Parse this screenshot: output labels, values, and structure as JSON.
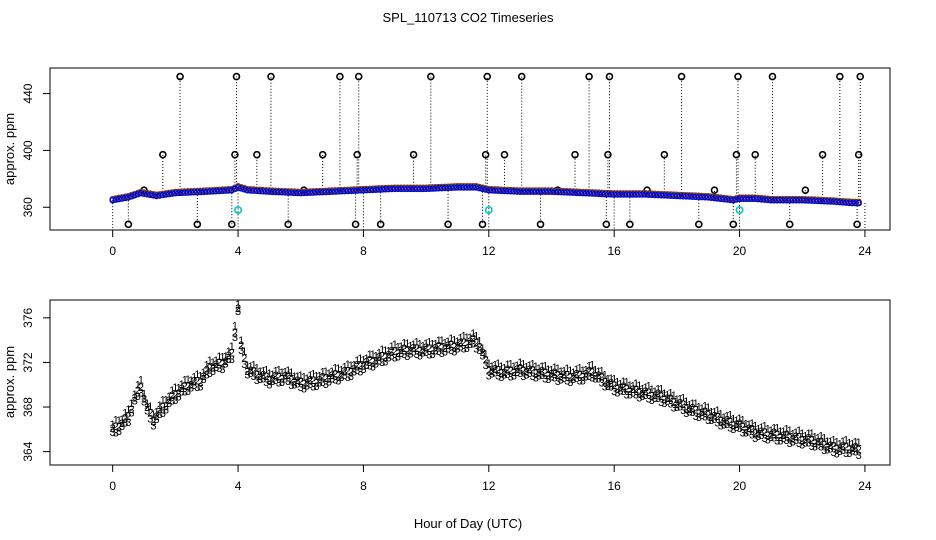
{
  "figure": {
    "title": "SPL_110713  CO2 Timeseries",
    "xlabel": "Hour of Day (UTC)"
  },
  "colors": {
    "series1": "#e00000",
    "series2": "#00b000",
    "series3": "#0000e0",
    "spike": "#000000",
    "cyan_marker": "#00c8c8"
  },
  "chart_data": [
    {
      "type": "scatter",
      "ylabel": "approx. ppm",
      "xlim": [
        -2,
        24.8
      ],
      "ylim": [
        344,
        458
      ],
      "xticks": [
        0,
        4,
        8,
        12,
        16,
        20,
        24
      ],
      "yticks": [
        360,
        400,
        440
      ],
      "grid": false,
      "baseline": {
        "x": [
          0,
          0.5,
          0.9,
          1.4,
          2,
          3,
          3.8,
          4,
          4.3,
          5,
          6,
          7,
          8,
          9,
          10,
          11,
          11.6,
          12,
          13,
          14,
          15,
          16,
          17,
          18,
          19,
          19.8,
          20,
          20.5,
          21,
          22,
          23,
          23.6,
          23.9
        ],
        "y": [
          365,
          367,
          370,
          368,
          370,
          371,
          372,
          374,
          372,
          371,
          370,
          371,
          372,
          373,
          373,
          374,
          374,
          372,
          371,
          371,
          370,
          369,
          369,
          368,
          367,
          365,
          366,
          366,
          365,
          365,
          364,
          363,
          363
        ]
      },
      "spikes": {
        "x": [
          0.5,
          1,
          1.6,
          2.15,
          2.7,
          3.8,
          3.9,
          3.95,
          4.6,
          5.05,
          5.6,
          6.1,
          6.7,
          7.25,
          7.75,
          7.8,
          7.85,
          8.55,
          9.6,
          10.15,
          10.7,
          11.8,
          11.9,
          11.95,
          12.5,
          13.05,
          13.65,
          14.2,
          14.75,
          15.2,
          15.75,
          15.8,
          15.85,
          16.5,
          17.05,
          17.6,
          18.15,
          18.7,
          19.2,
          19.8,
          19.9,
          19.95,
          20.5,
          21.05,
          21.6,
          22.1,
          22.65,
          23.2,
          23.75,
          23.8,
          23.85
        ],
        "y": [
          348,
          372,
          397,
          452,
          348,
          348,
          397,
          452,
          397,
          452,
          348,
          372,
          397,
          452,
          348,
          397,
          452,
          348,
          397,
          452,
          348,
          348,
          397,
          452,
          397,
          452,
          348,
          372,
          397,
          452,
          348,
          397,
          452,
          348,
          372,
          397,
          452,
          348,
          372,
          348,
          397,
          452,
          397,
          452,
          348,
          372,
          397,
          452,
          348,
          397,
          452
        ]
      },
      "cyan_points": {
        "x": [
          4,
          12,
          20
        ],
        "y": [
          358,
          358,
          358
        ]
      }
    },
    {
      "type": "scatter",
      "ylabel": "approx. ppm",
      "xlim": [
        -2,
        24.8
      ],
      "ylim": [
        362.8,
        377.6
      ],
      "xticks": [
        0,
        4,
        8,
        12,
        16,
        20,
        24
      ],
      "yticks": [
        364,
        368,
        372,
        376
      ],
      "grid": false,
      "series": [
        {
          "name": "1",
          "offset": 0.9
        },
        {
          "name": "2",
          "offset": 0.4
        },
        {
          "name": "3",
          "offset": 0.0
        }
      ],
      "profile": {
        "x": [
          0,
          0.3,
          0.5,
          0.7,
          0.9,
          1.1,
          1.3,
          1.6,
          2,
          2.4,
          2.8,
          3.1,
          3.5,
          3.8,
          4.0,
          4.1,
          4.3,
          4.6,
          5,
          5.5,
          6,
          6.5,
          7,
          7.5,
          8,
          8.5,
          9,
          9.5,
          10,
          10.5,
          11,
          11.5,
          11.7,
          12,
          12.5,
          13,
          13.5,
          14,
          14.5,
          15,
          15.3,
          15.7,
          16,
          16.5,
          17,
          17.5,
          18,
          18.5,
          19,
          19.5,
          20,
          20.5,
          21,
          21.5,
          22,
          22.5,
          23,
          23.5,
          23.9
        ],
        "y": [
          365.6,
          366.2,
          366.8,
          368.4,
          369.5,
          367.5,
          366.5,
          367.6,
          368.8,
          369.6,
          370.0,
          371.2,
          371.6,
          372.4,
          376.5,
          373.0,
          371.0,
          370.6,
          370.2,
          370.4,
          369.8,
          370.0,
          370.4,
          370.8,
          371.5,
          372.0,
          372.6,
          372.8,
          372.8,
          373.0,
          373.2,
          373.6,
          373.2,
          371.0,
          370.8,
          371.0,
          370.8,
          370.6,
          370.4,
          370.5,
          370.8,
          370.0,
          369.5,
          369.2,
          368.9,
          368.6,
          368.0,
          367.4,
          367.0,
          366.4,
          366.0,
          365.4,
          365.2,
          365.0,
          364.8,
          364.5,
          364.0,
          364.0,
          363.8
        ]
      }
    }
  ]
}
